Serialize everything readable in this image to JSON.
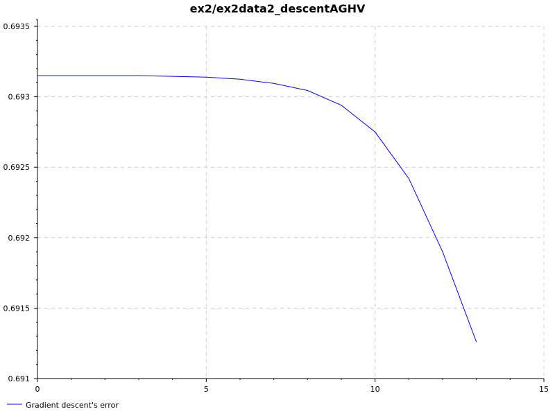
{
  "chart_data": {
    "type": "line",
    "title": "ex2/ex2data2_descentAGHV",
    "xlabel": "",
    "ylabel": "",
    "xlim": [
      0,
      15
    ],
    "ylim": [
      0.691,
      0.6935
    ],
    "x_ticks": [
      0,
      5,
      10,
      15
    ],
    "x_tick_labels": [
      "0",
      "5",
      "10",
      "15"
    ],
    "y_ticks": [
      0.691,
      0.6915,
      0.692,
      0.6925,
      0.693,
      0.6935
    ],
    "y_tick_labels": [
      "0.691",
      "0.6915",
      "0.692",
      "0.6925",
      "0.693",
      "0.6935"
    ],
    "grid": true,
    "legend_position": "bottom-left",
    "series": [
      {
        "name": "Gradient descent's error",
        "color": "#0000ff",
        "x": [
          0,
          1,
          2,
          3,
          4,
          5,
          6,
          7,
          8,
          9,
          10,
          11,
          12,
          13
        ],
        "y": [
          0.69315,
          0.69315,
          0.69315,
          0.69315,
          0.693145,
          0.69314,
          0.693125,
          0.693095,
          0.693045,
          0.69294,
          0.69275,
          0.69242,
          0.6919,
          0.69126
        ]
      }
    ]
  }
}
